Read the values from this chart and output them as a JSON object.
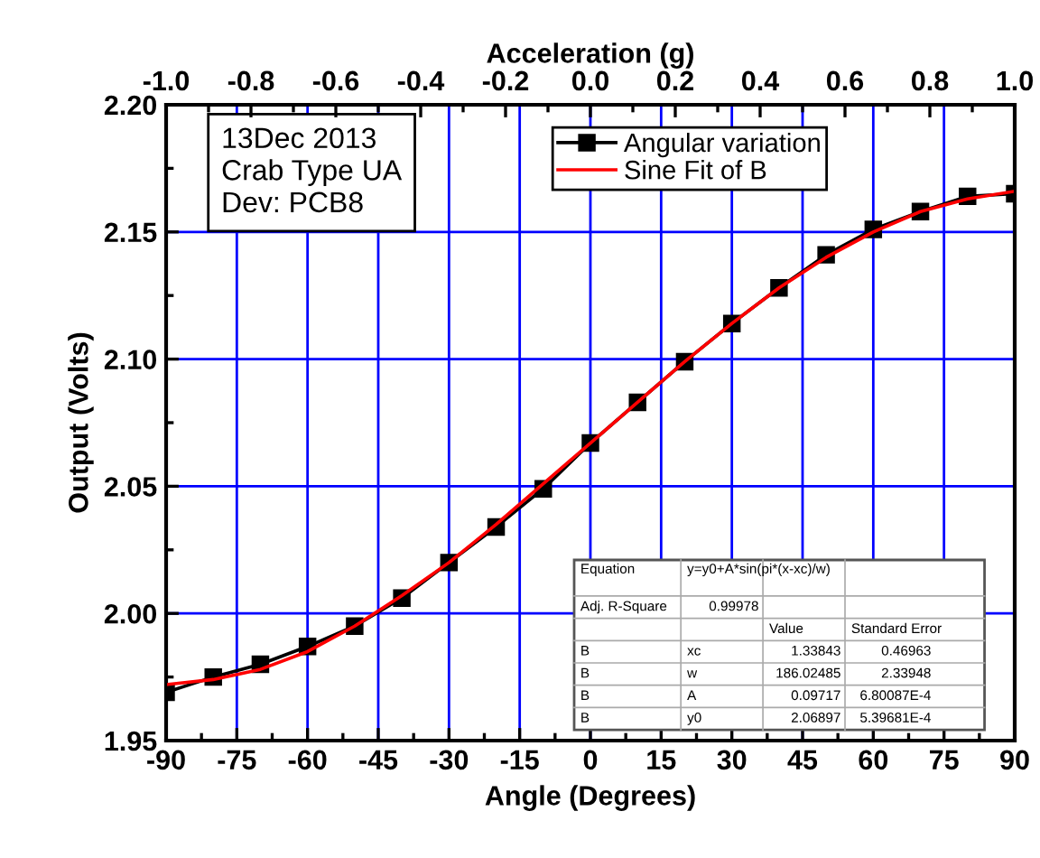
{
  "chart_data": {
    "type": "line",
    "xlabel": "Angle (Degrees)",
    "ylabel": "Output (Volts)",
    "x2label": "Acceleration (g)",
    "xlim": [
      -90,
      90
    ],
    "xticks": [
      -90,
      -75,
      -60,
      -45,
      -30,
      -15,
      0,
      15,
      30,
      45,
      60,
      75,
      90
    ],
    "ylim": [
      1.95,
      2.2
    ],
    "yticks": [
      {
        "value": 1.95,
        "label": "1.95"
      },
      {
        "value": 2.0,
        "label": "2.00"
      },
      {
        "value": 2.05,
        "label": "2.05"
      },
      {
        "value": 2.1,
        "label": "2.10"
      },
      {
        "value": 2.15,
        "label": "2.15"
      },
      {
        "value": 2.2,
        "label": "2.20"
      }
    ],
    "x2lim": [
      -1.0,
      1.0
    ],
    "x2ticks": [
      {
        "value": -1.0,
        "label": "-1.0"
      },
      {
        "value": -0.8,
        "label": "-0.8"
      },
      {
        "value": -0.6,
        "label": "-0.6"
      },
      {
        "value": -0.4,
        "label": "-0.4"
      },
      {
        "value": -0.2,
        "label": "-0.2"
      },
      {
        "value": 0.0,
        "label": "0.0"
      },
      {
        "value": 0.2,
        "label": "0.2"
      },
      {
        "value": 0.4,
        "label": "0.4"
      },
      {
        "value": 0.6,
        "label": "0.6"
      },
      {
        "value": 0.8,
        "label": "0.8"
      },
      {
        "value": 1.0,
        "label": "1.0"
      }
    ],
    "x": [
      -90,
      -80,
      -70,
      -60,
      -50,
      -40,
      -30,
      -20,
      -10,
      0,
      10,
      20,
      30,
      40,
      50,
      60,
      70,
      80,
      90
    ],
    "series": [
      {
        "name": "Angular variation",
        "color": "#000000",
        "marker": "square",
        "line_style": "solid",
        "values": [
          1.969,
          1.975,
          1.98,
          1.987,
          1.995,
          2.006,
          2.02,
          2.034,
          2.049,
          2.067,
          2.083,
          2.099,
          2.114,
          2.128,
          2.141,
          2.151,
          2.158,
          2.164,
          2.165
        ]
      },
      {
        "name": "Sine Fit of B",
        "color": "#ff0000",
        "marker": "none",
        "line_style": "solid",
        "values": [
          1.972,
          1.974,
          1.978,
          1.985,
          1.995,
          2.007,
          2.02,
          2.035,
          2.051,
          2.067,
          2.083,
          2.099,
          2.114,
          2.128,
          2.14,
          2.15,
          2.158,
          2.163,
          2.166
        ]
      }
    ],
    "grid": true,
    "legend": "top",
    "annotations": [
      "13Dec 2013",
      "Crab Type UA",
      "Dev: PCB8",
      "Equation",
      "y=y0+A*sin(pi*(x-xc)/w)",
      "Adj. R-Square",
      "0.99978",
      "Value",
      "Standard Error",
      "B",
      "xc",
      "1.33843",
      "0.46963",
      "B",
      "w",
      "186.02485",
      "2.33948",
      "B",
      "A",
      "0.09717",
      "6.80087E-4",
      "B",
      "y0",
      "2.06897",
      "5.39681E-4"
    ]
  }
}
